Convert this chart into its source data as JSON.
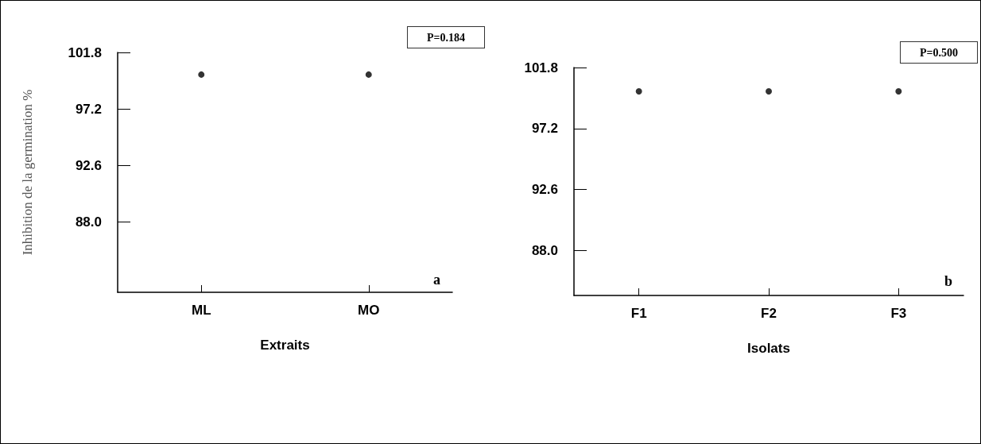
{
  "chart_data": [
    {
      "type": "scatter",
      "ylabel": "Inhibition de la germination %",
      "xlabel": "Extraits",
      "categories": [
        "ML",
        "MO"
      ],
      "series": [
        {
          "color": "#000000",
          "values": [
            100,
            100
          ]
        }
      ],
      "ylim": [
        82.3,
        101.8
      ],
      "yticks": [
        {
          "value": 88.0,
          "label": "88.0"
        },
        92.6,
        97.2,
        101.8
      ],
      "grid": false,
      "marker": "circle",
      "annotations": [
        "P=0.184",
        "a"
      ]
    },
    {
      "type": "scatter",
      "xlabel": "Isolats",
      "categories": [
        "F1",
        "F2",
        "F3"
      ],
      "series": [
        {
          "color": "#000000",
          "values": [
            100,
            100,
            100
          ]
        }
      ],
      "ylim": [
        84.6,
        101.8
      ],
      "yticks": [
        {
          "value": 88.0,
          "label": "88.0"
        },
        92.6,
        97.2,
        101.8
      ],
      "grid": false,
      "marker": "circle",
      "annotations": [
        "P=0.500",
        "b"
      ]
    }
  ]
}
